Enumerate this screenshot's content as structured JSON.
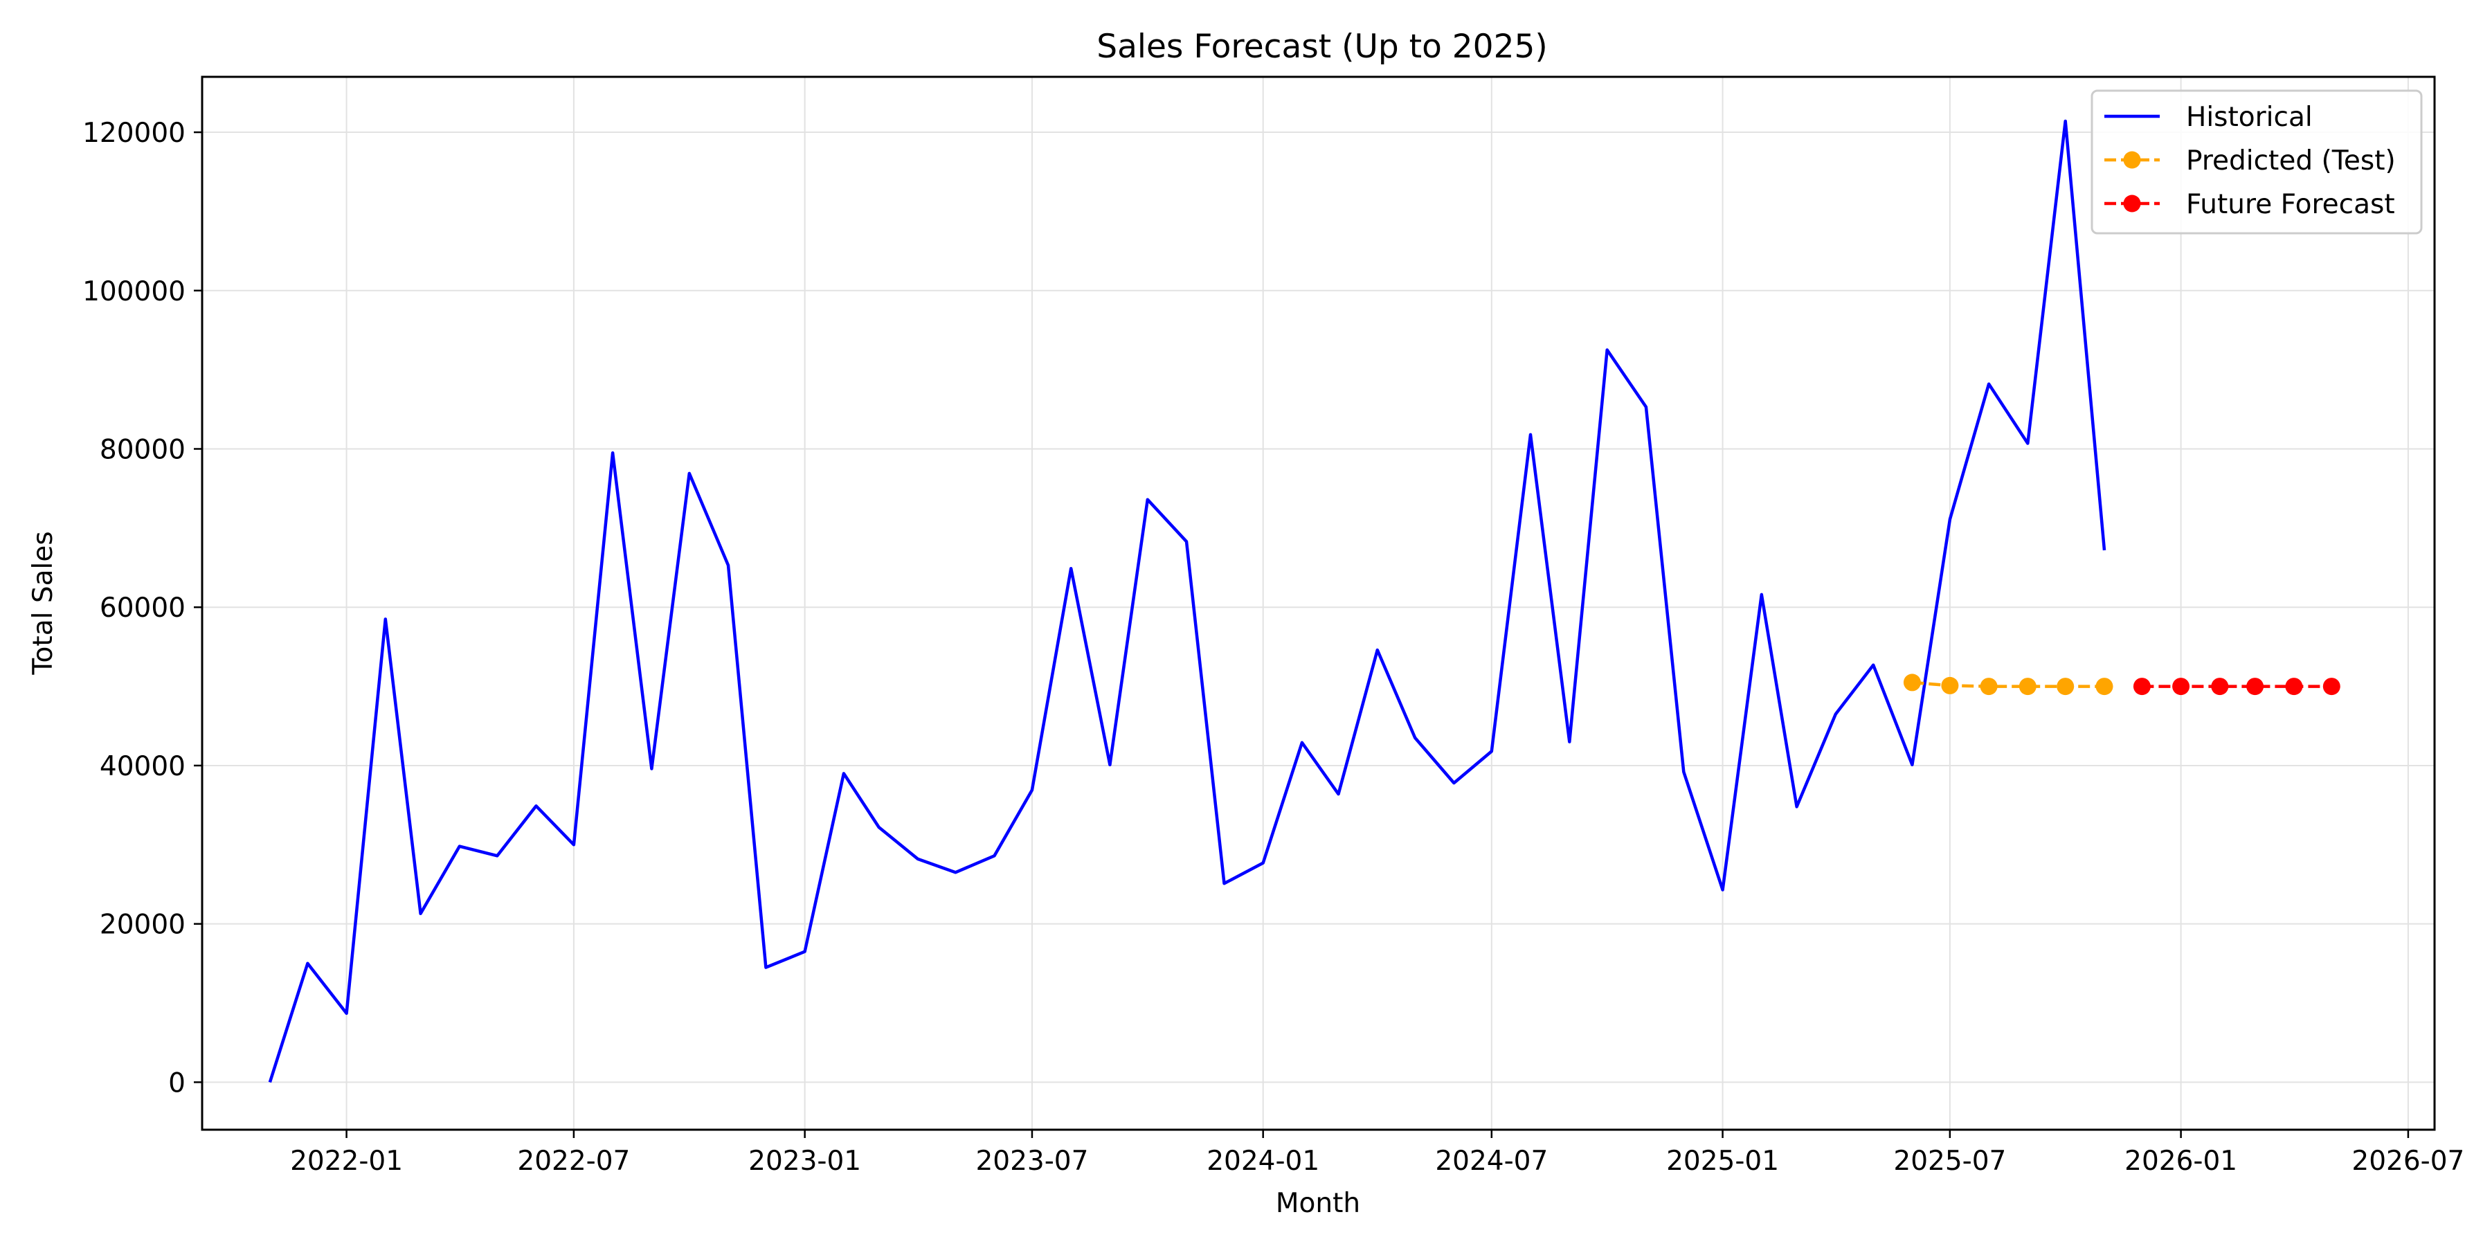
{
  "chart_data": {
    "type": "line",
    "title": "Sales Forecast (Up to 2025)",
    "xlabel": "Month",
    "ylabel": "Total Sales",
    "ylim": [
      -6000,
      127000
    ],
    "xlim": [
      "2021-09-08",
      "2026-07-22"
    ],
    "xticks": [
      "2022-01",
      "2022-07",
      "2023-01",
      "2023-07",
      "2024-01",
      "2024-07",
      "2025-01",
      "2025-07",
      "2026-01",
      "2026-07"
    ],
    "yticks": [
      0,
      20000,
      40000,
      60000,
      80000,
      100000,
      120000
    ],
    "grid": true,
    "legend_position": "top-right",
    "series": [
      {
        "name": "Historical",
        "style": "solid",
        "marker": "none",
        "color": "#0000ff",
        "x": [
          "2021-11",
          "2021-12",
          "2022-01",
          "2022-02",
          "2022-03",
          "2022-04",
          "2022-05",
          "2022-06",
          "2022-07",
          "2022-08",
          "2022-09",
          "2022-10",
          "2022-11",
          "2022-12",
          "2023-01",
          "2023-02",
          "2023-03",
          "2023-04",
          "2023-05",
          "2023-06",
          "2023-07",
          "2023-08",
          "2023-09",
          "2023-10",
          "2023-11",
          "2023-12",
          "2024-01",
          "2024-02",
          "2024-03",
          "2024-04",
          "2024-05",
          "2024-06",
          "2024-07",
          "2024-08",
          "2024-09",
          "2024-10",
          "2024-11",
          "2024-12",
          "2025-01",
          "2025-02",
          "2025-03",
          "2025-04",
          "2025-05",
          "2025-06",
          "2025-07",
          "2025-08",
          "2025-09",
          "2025-10",
          "2025-11"
        ],
        "values": [
          0,
          15000,
          8700,
          58500,
          21300,
          29800,
          28600,
          34900,
          30000,
          79500,
          39600,
          76900,
          65300,
          14500,
          16500,
          39000,
          32200,
          28200,
          26500,
          28600,
          36900,
          64900,
          40100,
          73600,
          68300,
          25100,
          27700,
          42900,
          36400,
          54600,
          43500,
          37800,
          41800,
          81800,
          43000,
          92500,
          85300,
          39200,
          24300,
          61600,
          34800,
          46500,
          52700,
          40100,
          71100,
          88200,
          80700,
          121400,
          67200
        ]
      },
      {
        "name": "Predicted (Test)",
        "style": "dashed",
        "marker": "circle",
        "color": "#ffa500",
        "x": [
          "2025-06",
          "2025-07",
          "2025-08",
          "2025-09",
          "2025-10",
          "2025-11"
        ],
        "values": [
          50500,
          50100,
          50000,
          50000,
          50000,
          50000
        ]
      },
      {
        "name": "Future Forecast",
        "style": "dashed",
        "marker": "circle",
        "color": "#ff0000",
        "x": [
          "2025-12",
          "2026-01",
          "2026-02",
          "2026-03",
          "2026-04",
          "2026-05"
        ],
        "values": [
          50000,
          50000,
          50000,
          50000,
          50000,
          50000
        ]
      }
    ]
  }
}
